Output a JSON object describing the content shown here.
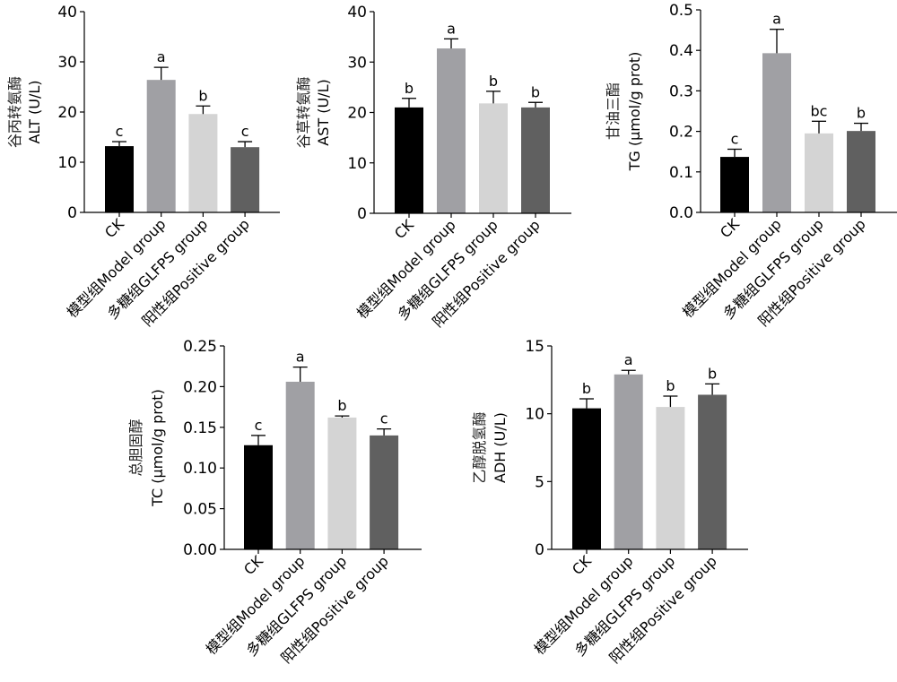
{
  "chart_data": [
    {
      "type": "bar",
      "title": "",
      "ylabel_cn": "谷丙转氨酶",
      "ylabel": "ALT (U/L)",
      "xlabel": "",
      "categories": [
        "CK",
        "模型组Model group",
        "多糖组GLFPS group",
        "阳性组Positive group"
      ],
      "values": [
        13.2,
        26.4,
        19.6,
        13.0
      ],
      "errors": [
        0.9,
        2.5,
        1.6,
        1.1
      ],
      "significance": [
        "c",
        "a",
        "b",
        "c"
      ],
      "ylim": [
        0,
        40
      ],
      "yticks": [
        0,
        10,
        20,
        30,
        40
      ],
      "ytick_labels": [
        "0",
        "10",
        "20",
        "30",
        "40"
      ],
      "grid": false,
      "legend": "none"
    },
    {
      "type": "bar",
      "title": "",
      "ylabel_cn": "谷草转氨酶",
      "ylabel": "AST (U/L)",
      "xlabel": "",
      "categories": [
        "CK",
        "模型组Model group",
        "多糖组GLFPS group",
        "阳性组Positive group"
      ],
      "values": [
        21.0,
        32.7,
        21.8,
        21.0
      ],
      "errors": [
        1.8,
        1.9,
        2.4,
        1.0
      ],
      "significance": [
        "b",
        "a",
        "b",
        "b"
      ],
      "ylim": [
        0,
        40
      ],
      "yticks": [
        0,
        10,
        20,
        30,
        40
      ],
      "ytick_labels": [
        "0",
        "10",
        "20",
        "30",
        "40"
      ],
      "grid": false,
      "legend": "none"
    },
    {
      "type": "bar",
      "title": "",
      "ylabel_cn": "甘油三酯",
      "ylabel": "TG (µmol/g prot)",
      "xlabel": "",
      "categories": [
        "CK",
        "模型组Model group",
        "多糖组GLFPS group",
        "阳性组Positive group"
      ],
      "values": [
        0.137,
        0.393,
        0.195,
        0.201
      ],
      "errors": [
        0.019,
        0.059,
        0.03,
        0.019
      ],
      "significance": [
        "c",
        "a",
        "bc",
        "b"
      ],
      "ylim": [
        0,
        0.5
      ],
      "yticks": [
        0,
        0.1,
        0.2,
        0.3,
        0.4,
        0.5
      ],
      "ytick_labels": [
        "0.0",
        "0.1",
        "0.2",
        "0.3",
        "0.4",
        "0.5"
      ],
      "grid": false,
      "legend": "none"
    },
    {
      "type": "bar",
      "title": "",
      "ylabel_cn": "总胆固醇",
      "ylabel": "TC (µmol/g prot)",
      "xlabel": "",
      "categories": [
        "CK",
        "模型组Model group",
        "多糖组GLFPS group",
        "阳性组Positive group"
      ],
      "values": [
        0.128,
        0.206,
        0.162,
        0.14
      ],
      "errors": [
        0.012,
        0.018,
        0.002,
        0.008
      ],
      "significance": [
        "c",
        "a",
        "b",
        "c"
      ],
      "ylim": [
        0,
        0.25
      ],
      "yticks": [
        0,
        0.05,
        0.1,
        0.15,
        0.2,
        0.25
      ],
      "ytick_labels": [
        "0.00",
        "0.05",
        "0.10",
        "0.15",
        "0.20",
        "0.25"
      ],
      "grid": false,
      "legend": "none"
    },
    {
      "type": "bar",
      "title": "",
      "ylabel_cn": "乙醇脱氢酶",
      "ylabel": "ADH (U/L)",
      "xlabel": "",
      "categories": [
        "CK",
        "模型组Model group",
        "多糖组GLFPS group",
        "阳性组Positive group"
      ],
      "values": [
        10.4,
        12.9,
        10.5,
        11.4
      ],
      "errors": [
        0.7,
        0.3,
        0.8,
        0.8
      ],
      "significance": [
        "b",
        "a",
        "b",
        "b"
      ],
      "ylim": [
        0,
        15
      ],
      "yticks": [
        0,
        5,
        10,
        15
      ],
      "ytick_labels": [
        "0",
        "5",
        "10",
        "15"
      ],
      "grid": false,
      "legend": "none"
    }
  ],
  "bar_colors": [
    "#000000",
    "#a0a0a4",
    "#d4d4d4",
    "#606060"
  ]
}
